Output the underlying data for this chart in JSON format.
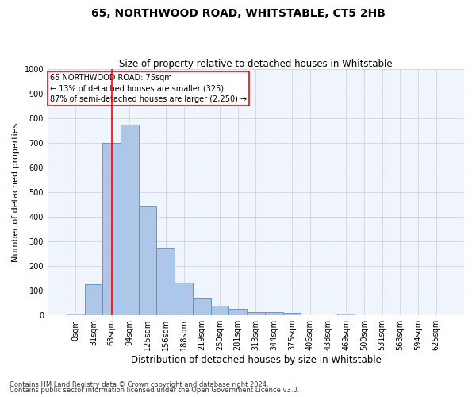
{
  "title": "65, NORTHWOOD ROAD, WHITSTABLE, CT5 2HB",
  "subtitle": "Size of property relative to detached houses in Whitstable",
  "xlabel": "Distribution of detached houses by size in Whitstable",
  "ylabel": "Number of detached properties",
  "bar_labels": [
    "0sqm",
    "31sqm",
    "63sqm",
    "94sqm",
    "125sqm",
    "156sqm",
    "188sqm",
    "219sqm",
    "250sqm",
    "281sqm",
    "313sqm",
    "344sqm",
    "375sqm",
    "406sqm",
    "438sqm",
    "469sqm",
    "500sqm",
    "531sqm",
    "563sqm",
    "594sqm",
    "625sqm"
  ],
  "bar_values": [
    8,
    125,
    700,
    775,
    443,
    275,
    132,
    70,
    40,
    27,
    15,
    12,
    10,
    0,
    0,
    8,
    0,
    0,
    0,
    0,
    0
  ],
  "bar_color": "#aec6e8",
  "bar_edge_color": "#5b8db8",
  "vline_x": 2,
  "vline_color": "red",
  "ylim": [
    0,
    1000
  ],
  "yticks": [
    0,
    100,
    200,
    300,
    400,
    500,
    600,
    700,
    800,
    900,
    1000
  ],
  "annotation_title": "65 NORTHWOOD ROAD: 75sqm",
  "annotation_line1": "← 13% of detached houses are smaller (325)",
  "annotation_line2": "87% of semi-detached houses are larger (2,250) →",
  "annotation_box_color": "red",
  "footer1": "Contains HM Land Registry data © Crown copyright and database right 2024.",
  "footer2": "Contains public sector information licensed under the Open Government Licence v3.0.",
  "bg_color": "#f0f4fb",
  "grid_color": "#ccd6e8",
  "title_fontsize": 10,
  "subtitle_fontsize": 8.5,
  "ylabel_fontsize": 8,
  "xlabel_fontsize": 8.5,
  "tick_fontsize": 7,
  "annotation_fontsize": 7,
  "footer_fontsize": 6
}
